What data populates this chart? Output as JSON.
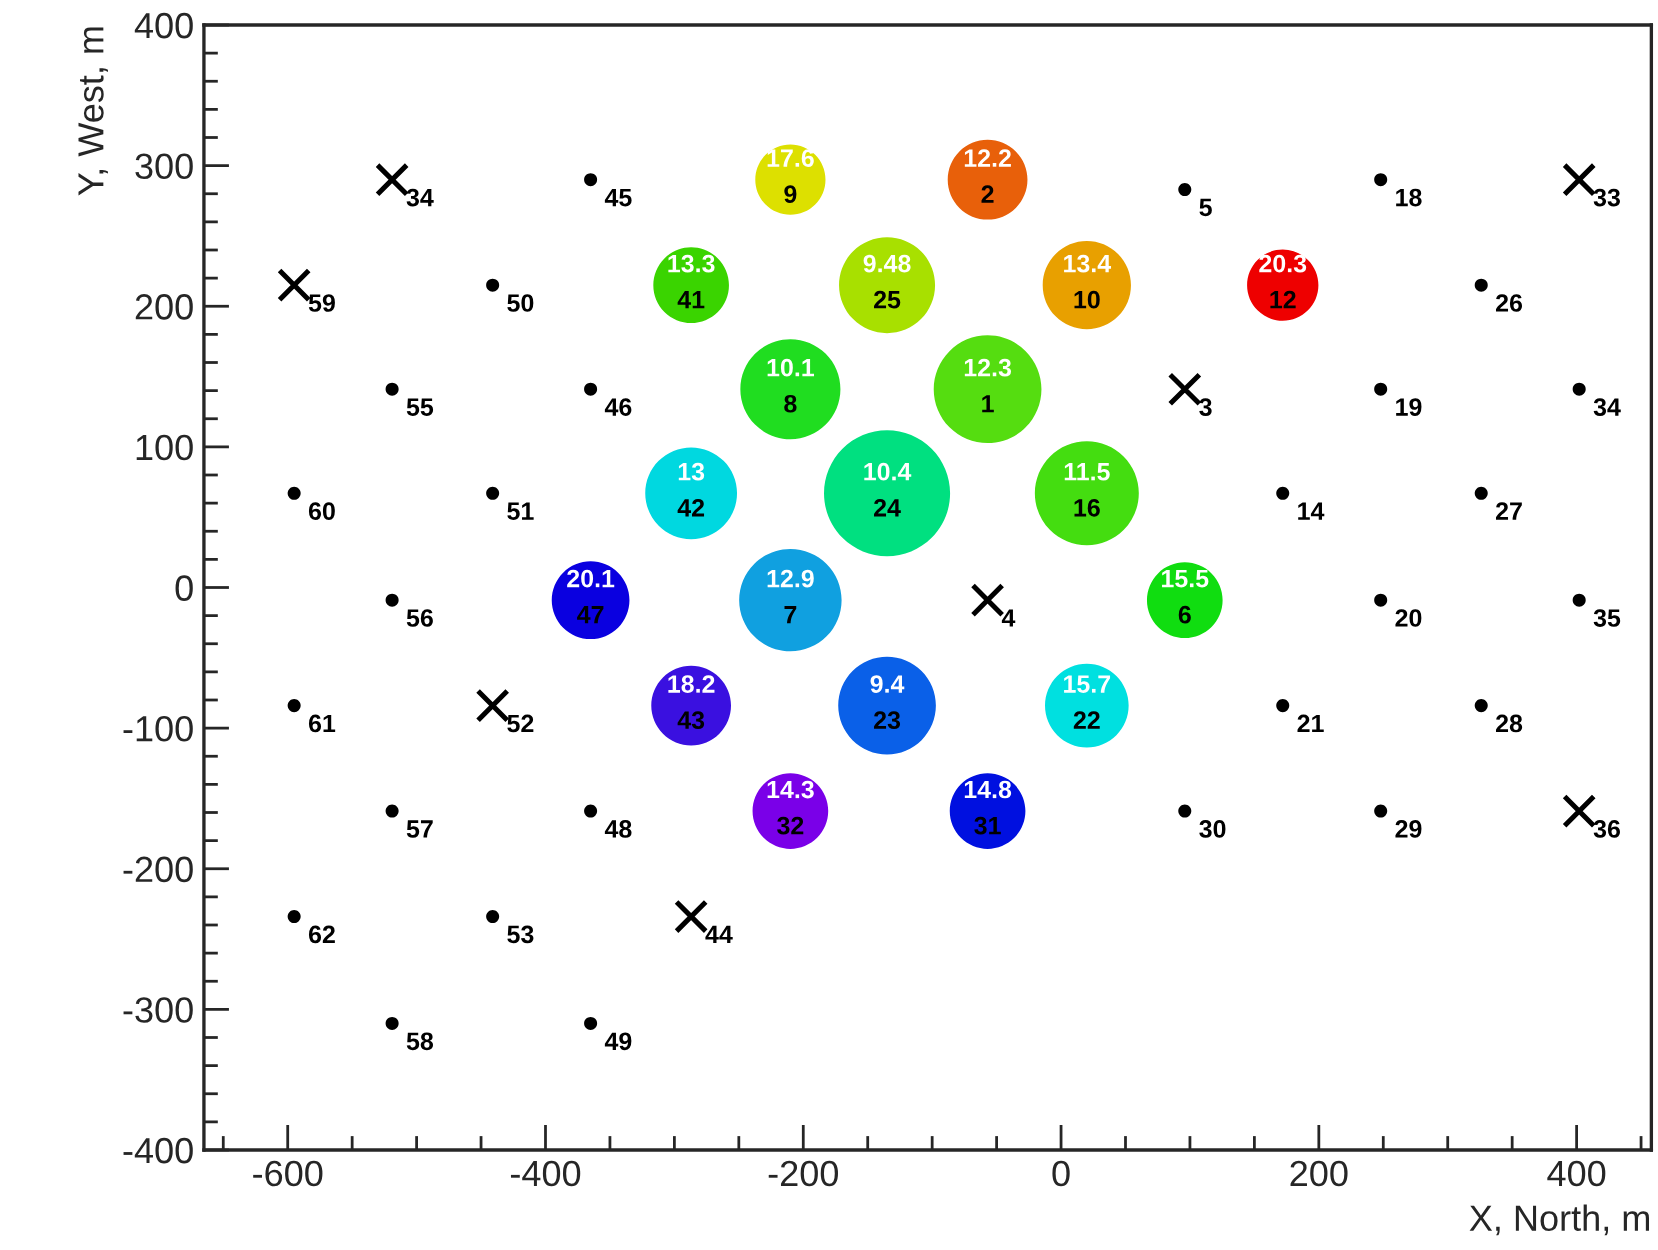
{
  "chart_data": {
    "type": "bubble",
    "xlabel": "X, North, m",
    "ylabel": "Y, West, m",
    "xlim": [
      -665,
      458
    ],
    "ylim": [
      -400,
      400
    ],
    "xticks": [
      -600,
      -400,
      -200,
      0,
      200,
      400,
      {
        "value": -650,
        "label": null
      },
      {
        "value": -550,
        "label": null
      },
      {
        "value": -500,
        "label": null
      },
      {
        "value": -450,
        "label": null
      },
      {
        "value": -350,
        "label": null
      },
      {
        "value": -300,
        "label": null
      },
      {
        "value": -250,
        "label": null
      },
      {
        "value": -150,
        "label": null
      },
      {
        "value": -100,
        "label": null
      },
      {
        "value": -50,
        "label": null
      },
      {
        "value": 50,
        "label": null
      },
      {
        "value": 100,
        "label": null
      },
      {
        "value": 150,
        "label": null
      },
      {
        "value": 250,
        "label": null
      },
      {
        "value": 300,
        "label": null
      },
      {
        "value": 350,
        "label": null
      },
      {
        "value": 450,
        "label": null
      }
    ],
    "yticks": [
      -400,
      -300,
      -200,
      -100,
      0,
      100,
      200,
      300,
      400,
      {
        "value": -380,
        "label": null
      },
      {
        "value": -360,
        "label": null
      },
      {
        "value": -340,
        "label": null
      },
      {
        "value": -320,
        "label": null
      },
      {
        "value": -280,
        "label": null
      },
      {
        "value": -260,
        "label": null
      },
      {
        "value": -240,
        "label": null
      },
      {
        "value": -220,
        "label": null
      },
      {
        "value": -180,
        "label": null
      },
      {
        "value": -160,
        "label": null
      },
      {
        "value": -140,
        "label": null
      },
      {
        "value": -120,
        "label": null
      },
      {
        "value": -80,
        "label": null
      },
      {
        "value": -60,
        "label": null
      },
      {
        "value": -40,
        "label": null
      },
      {
        "value": -20,
        "label": null
      },
      {
        "value": 20,
        "label": null
      },
      {
        "value": 40,
        "label": null
      },
      {
        "value": 60,
        "label": null
      },
      {
        "value": 80,
        "label": null
      },
      {
        "value": 120,
        "label": null
      },
      {
        "value": 140,
        "label": null
      },
      {
        "value": 160,
        "label": null
      },
      {
        "value": 180,
        "label": null
      },
      {
        "value": 220,
        "label": null
      },
      {
        "value": 240,
        "label": null
      },
      {
        "value": 260,
        "label": null
      },
      {
        "value": 280,
        "label": null
      },
      {
        "value": 320,
        "label": null
      },
      {
        "value": 340,
        "label": null
      },
      {
        "value": 360,
        "label": null
      },
      {
        "value": 380,
        "label": null
      }
    ],
    "grid": false,
    "legend": false,
    "series": [
      {
        "type": "bubble",
        "marker": "circle",
        "x": [
          -210,
          -57,
          -287,
          -135,
          20,
          172,
          -210,
          -57,
          -287,
          -135,
          20,
          -365,
          -210,
          96,
          -287,
          -135,
          20,
          -210,
          -57
        ],
        "values": [
          290,
          290,
          215,
          215,
          215,
          215,
          141,
          141,
          67,
          67,
          67,
          -9,
          -9,
          -9,
          -84,
          -84,
          -84,
          -159,
          -159
        ],
        "sizes": [
          0.31,
          0.4,
          0.36,
          0.58,
          0.49,
          0.32,
          0.63,
          0.73,
          0.53,
          1,
          0.68,
          0.38,
          0.66,
          0.36,
          0.4,
          0.6,
          0.44,
          0.36,
          0.36
        ],
        "colors": [
          "#dde000",
          "#e8600a",
          "#3ad400",
          "#a8e000",
          "#e8a000",
          "#ee0000",
          "#20dd20",
          "#55dd10",
          "#00d8e0",
          "#00e080",
          "#44dd10",
          "#0a00e0",
          "#10a0e0",
          "#10dd10",
          "#3a10e0",
          "#0a60e8",
          "#00e0e0",
          "#7a00e8",
          "#0010e0"
        ]
      },
      {
        "type": "scatter",
        "marker": "circle",
        "color": "#000000",
        "x": [
          96,
          248,
          -365,
          -441,
          326,
          -519,
          -365,
          248,
          402,
          -595,
          -441,
          172,
          326,
          -519,
          248,
          402,
          -595,
          172,
          326,
          -519,
          -365,
          96,
          248,
          -595,
          -441,
          -519,
          -365
        ],
        "values": [
          283,
          290,
          290,
          215,
          215,
          141,
          141,
          141,
          141,
          67,
          67,
          67,
          67,
          -9,
          -9,
          -9,
          -84,
          -84,
          -84,
          -159,
          -159,
          -159,
          -159,
          -234,
          -234,
          -310,
          -310
        ]
      },
      {
        "type": "scatter",
        "marker": "cross",
        "color": "#000000",
        "x": [
          -519,
          402,
          -595,
          96,
          -57,
          -441,
          402,
          -287
        ],
        "values": [
          290,
          290,
          215,
          141,
          -9,
          -84,
          -159,
          -234
        ]
      }
    ],
    "annotations": [
      {
        "text": "17.6",
        "x": -210,
        "y": 290
      },
      {
        "text": "12.2",
        "x": -57,
        "y": 290
      },
      {
        "text": "13.3",
        "x": -287,
        "y": 215
      },
      {
        "text": "9.48",
        "x": -135,
        "y": 215
      },
      {
        "text": "13.4",
        "x": 20,
        "y": 215
      },
      {
        "text": "20.3",
        "x": 172,
        "y": 215
      },
      {
        "text": "10.1",
        "x": -210,
        "y": 141
      },
      {
        "text": "12.3",
        "x": -57,
        "y": 141
      },
      {
        "text": "13",
        "x": -287,
        "y": 67
      },
      {
        "text": "10.4",
        "x": -135,
        "y": 67
      },
      {
        "text": "11.5",
        "x": 20,
        "y": 67
      },
      {
        "text": "20.1",
        "x": -365,
        "y": -9
      },
      {
        "text": "12.9",
        "x": -210,
        "y": -9
      },
      {
        "text": "15.5",
        "x": 96,
        "y": -9
      },
      {
        "text": "18.2",
        "x": -287,
        "y": -84
      },
      {
        "text": "9.4",
        "x": -135,
        "y": -84
      },
      {
        "text": "15.7",
        "x": 20,
        "y": -84
      },
      {
        "text": "14.3",
        "x": -210,
        "y": -159
      },
      {
        "text": "14.8",
        "x": -57,
        "y": -159
      },
      {
        "text": "9",
        "x": -210,
        "y": 290
      },
      {
        "text": "2",
        "x": -57,
        "y": 290
      },
      {
        "text": "41",
        "x": -287,
        "y": 215
      },
      {
        "text": "25",
        "x": -135,
        "y": 215
      },
      {
        "text": "10",
        "x": 20,
        "y": 215
      },
      {
        "text": "12",
        "x": 172,
        "y": 215
      },
      {
        "text": "8",
        "x": -210,
        "y": 141
      },
      {
        "text": "1",
        "x": -57,
        "y": 141
      },
      {
        "text": "42",
        "x": -287,
        "y": 67
      },
      {
        "text": "24",
        "x": -135,
        "y": 67
      },
      {
        "text": "16",
        "x": 20,
        "y": 67
      },
      {
        "text": "47",
        "x": -365,
        "y": -9
      },
      {
        "text": "7",
        "x": -210,
        "y": -9
      },
      {
        "text": "6",
        "x": 96,
        "y": -9
      },
      {
        "text": "43",
        "x": -287,
        "y": -84
      },
      {
        "text": "23",
        "x": -135,
        "y": -84
      },
      {
        "text": "22",
        "x": 20,
        "y": -84
      },
      {
        "text": "32",
        "x": -210,
        "y": -159
      },
      {
        "text": "31",
        "x": -57,
        "y": -159
      },
      {
        "text": "5",
        "x": 96,
        "y": 283
      },
      {
        "text": "18",
        "x": 248,
        "y": 290
      },
      {
        "text": "45",
        "x": -365,
        "y": 290
      },
      {
        "text": "50",
        "x": -441,
        "y": 215
      },
      {
        "text": "26",
        "x": 326,
        "y": 215
      },
      {
        "text": "55",
        "x": -519,
        "y": 141
      },
      {
        "text": "46",
        "x": -365,
        "y": 141
      },
      {
        "text": "19",
        "x": 248,
        "y": 141
      },
      {
        "text": "34",
        "x": 402,
        "y": 141
      },
      {
        "text": "60",
        "x": -595,
        "y": 67
      },
      {
        "text": "51",
        "x": -441,
        "y": 67
      },
      {
        "text": "14",
        "x": 172,
        "y": 67
      },
      {
        "text": "27",
        "x": 326,
        "y": 67
      },
      {
        "text": "56",
        "x": -519,
        "y": -9
      },
      {
        "text": "20",
        "x": 248,
        "y": -9
      },
      {
        "text": "35",
        "x": 402,
        "y": -9
      },
      {
        "text": "61",
        "x": -595,
        "y": -84
      },
      {
        "text": "21",
        "x": 172,
        "y": -84
      },
      {
        "text": "28",
        "x": 326,
        "y": -84
      },
      {
        "text": "57",
        "x": -519,
        "y": -159
      },
      {
        "text": "48",
        "x": -365,
        "y": -159
      },
      {
        "text": "30",
        "x": 96,
        "y": -159
      },
      {
        "text": "29",
        "x": 248,
        "y": -159
      },
      {
        "text": "62",
        "x": -595,
        "y": -234
      },
      {
        "text": "53",
        "x": -441,
        "y": -234
      },
      {
        "text": "58",
        "x": -519,
        "y": -310
      },
      {
        "text": "49",
        "x": -365,
        "y": -310
      },
      {
        "text": "34",
        "x": -519,
        "y": 290
      },
      {
        "text": "33",
        "x": 402,
        "y": 290
      },
      {
        "text": "59",
        "x": -595,
        "y": 215
      },
      {
        "text": "3",
        "x": 96,
        "y": 141
      },
      {
        "text": "4",
        "x": -57,
        "y": -9
      },
      {
        "text": "52",
        "x": -441,
        "y": -84
      },
      {
        "text": "36",
        "x": 402,
        "y": -159
      },
      {
        "text": "44",
        "x": -287,
        "y": -234
      }
    ]
  }
}
